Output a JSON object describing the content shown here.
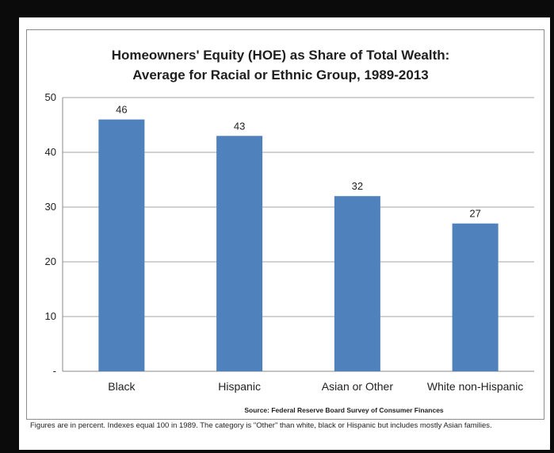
{
  "chart_data": {
    "type": "bar",
    "title": "Homeowners' Equity (HOE) as Share of Total Wealth:",
    "subtitle": "Average for Racial or Ethnic Group, 1989-2013",
    "categories": [
      "Black",
      "Hispanic",
      "Asian or Other",
      "White non-Hispanic"
    ],
    "values": [
      46,
      43,
      32,
      27
    ],
    "data_labels": [
      "46",
      "43",
      "32",
      "27"
    ],
    "ylim": [
      0,
      50
    ],
    "yticks": [
      10,
      20,
      30,
      40,
      50
    ],
    "y_zero_tick_label": "-",
    "grid": true,
    "legend": "none",
    "bar_color": "#4f81bd",
    "source": "Source: Federal Reserve Board Survey of Consumer Finances"
  },
  "footnote": "Figures are in percent. Indexes equal 100 in 1989. The category is \"Other\" than white, black or Hispanic but includes mostly Asian families."
}
